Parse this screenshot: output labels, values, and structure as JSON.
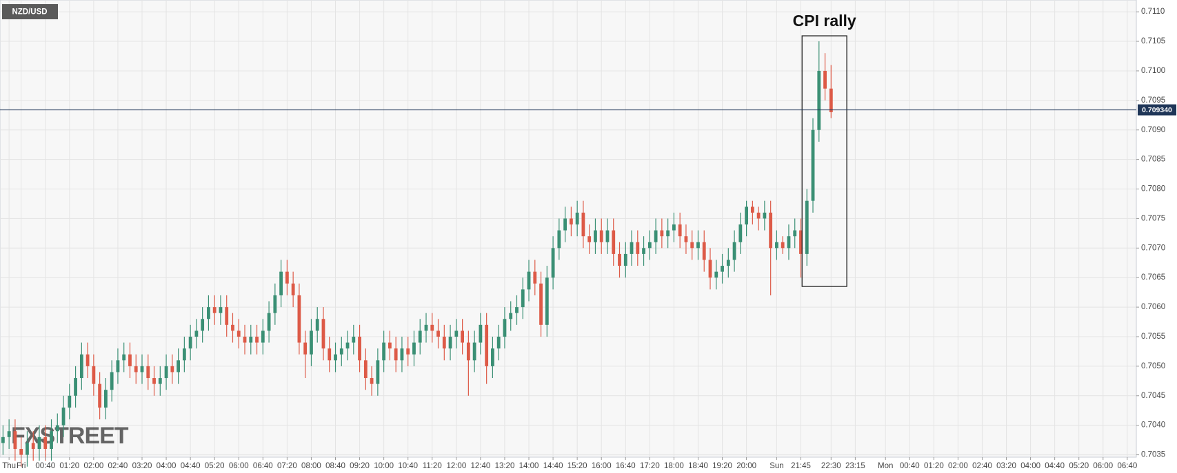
{
  "chart_data": {
    "type": "candlestick",
    "annotation": "CPI rally",
    "watermark": "FXSTREET",
    "grid": true,
    "up_color": "#3a8f74",
    "down_color": "#dd5a47",
    "ylim": [
      0.70346,
      0.7112
    ],
    "yticks": [
      0.7035,
      {
        "value": 0.704,
        "label": "0.7040"
      },
      0.7045,
      {
        "value": 0.705,
        "label": "0.7050"
      },
      0.7055,
      {
        "value": 0.706,
        "label": "0.7060"
      },
      0.7065,
      {
        "value": 0.707,
        "label": "0.7070"
      },
      0.7075,
      {
        "value": 0.708,
        "label": "0.7080"
      },
      0.7085,
      {
        "value": 0.709,
        "label": "0.7090"
      },
      0.7095,
      {
        "value": 0.71,
        "label": "0.7100"
      },
      0.7105,
      {
        "value": 0.711,
        "label": "0.7110"
      }
    ],
    "last_price": {
      "value": 0.70934,
      "label": "0.709340",
      "color": "#1f3658"
    },
    "categories": [
      null,
      "Thu",
      null,
      "Fri",
      null,
      null,
      null,
      "00:40",
      null,
      null,
      null,
      "01:20",
      null,
      null,
      null,
      "02:00",
      null,
      null,
      null,
      "02:40",
      null,
      null,
      null,
      "03:20",
      null,
      null,
      null,
      "04:00",
      null,
      null,
      null,
      "04:40",
      null,
      null,
      null,
      "05:20",
      null,
      null,
      null,
      "06:00",
      null,
      null,
      null,
      "06:40",
      null,
      null,
      null,
      "07:20",
      null,
      null,
      null,
      "08:00",
      null,
      null,
      null,
      "08:40",
      null,
      null,
      null,
      "09:20",
      null,
      null,
      null,
      "10:00",
      null,
      null,
      null,
      "10:40",
      null,
      null,
      null,
      "11:20",
      null,
      null,
      null,
      "12:00",
      null,
      null,
      null,
      "12:40",
      null,
      null,
      null,
      "13:20",
      null,
      null,
      null,
      "14:00",
      null,
      null,
      null,
      "14:40",
      null,
      null,
      null,
      "15:20",
      null,
      null,
      null,
      "16:00",
      null,
      null,
      null,
      "16:40",
      null,
      null,
      null,
      "17:20",
      null,
      null,
      null,
      "18:00",
      null,
      null,
      null,
      "18:40",
      null,
      null,
      null,
      "19:20",
      null,
      null,
      null,
      "20:00",
      null,
      null,
      null,
      null,
      "Sun",
      null,
      null,
      null,
      "21:45",
      null,
      null,
      null,
      null,
      "22:30",
      null,
      null,
      null,
      "23:15",
      null,
      null,
      null,
      null,
      "Mon",
      null,
      null,
      null,
      "00:40",
      null,
      null,
      null,
      "01:20",
      null,
      null,
      null,
      "02:00",
      null,
      null,
      null,
      "02:40",
      null,
      null,
      null,
      "03:20",
      null,
      null,
      null,
      "04:00",
      null,
      null,
      null,
      "04:40",
      null,
      null,
      null,
      "05:20",
      null,
      null,
      null,
      "06:00",
      null,
      null,
      null,
      "06:40",
      null
    ],
    "series": [
      {
        "name": "NZD/USD",
        "open": [
          0.7037,
          0.7038,
          0.7039,
          0.7036,
          0.7035,
          0.7037,
          0.7036,
          0.7038,
          0.7036,
          0.7039,
          0.704,
          0.7043,
          0.7045,
          0.7048,
          0.7052,
          0.705,
          0.7047,
          0.7043,
          0.7046,
          0.7049,
          0.7051,
          0.7052,
          0.705,
          0.7049,
          0.705,
          0.7048,
          0.7047,
          0.7048,
          0.705,
          0.7049,
          0.7051,
          0.7053,
          0.7055,
          0.7056,
          0.7058,
          0.706,
          0.7059,
          0.706,
          0.7057,
          0.7056,
          0.7055,
          0.7054,
          0.7055,
          0.7054,
          0.7056,
          0.7059,
          0.7062,
          0.7066,
          0.7064,
          0.7062,
          0.7054,
          0.7052,
          0.7056,
          0.7058,
          0.7053,
          0.7051,
          0.7052,
          0.7053,
          0.7054,
          0.7055,
          0.7051,
          0.7048,
          0.7047,
          0.7051,
          0.7054,
          0.7053,
          0.7051,
          0.7053,
          0.7052,
          0.7054,
          0.7056,
          0.7057,
          0.7056,
          0.7055,
          0.7053,
          0.7055,
          0.7056,
          0.7054,
          0.7051,
          0.7054,
          0.7057,
          0.705,
          0.7053,
          0.7055,
          0.7058,
          0.7059,
          0.706,
          0.7063,
          0.7066,
          0.7064,
          0.7057,
          0.7065,
          0.707,
          0.7073,
          0.7075,
          0.7074,
          0.7076,
          0.7072,
          0.7071,
          0.7073,
          0.7071,
          0.7073,
          0.7069,
          0.7067,
          0.7069,
          0.7071,
          0.7069,
          0.707,
          0.7071,
          0.7073,
          0.7072,
          0.7073,
          0.7074,
          0.7072,
          0.7071,
          0.707,
          0.7071,
          0.7068,
          0.7065,
          0.7066,
          0.7067,
          0.7068,
          0.7071,
          0.7074,
          0.7077,
          0.7076,
          0.7075,
          0.7076,
          0.707,
          0.7071,
          0.707,
          0.7072,
          0.7073,
          0.7069,
          0.7078,
          0.709,
          0.71,
          0.7097,
          null,
          null,
          null,
          null,
          null,
          null,
          null,
          null,
          null,
          null,
          null,
          null,
          null,
          null,
          null,
          null,
          null,
          null,
          null,
          null,
          null,
          null,
          null,
          null,
          null,
          null,
          null,
          null,
          null,
          null,
          null,
          null,
          null,
          null,
          null,
          null,
          null,
          null,
          null,
          null,
          null,
          null,
          null,
          null,
          null,
          null,
          null,
          null,
          null,
          null
        ],
        "high": [
          0.704,
          0.7041,
          0.7041,
          0.7038,
          0.7039,
          0.7039,
          0.704,
          0.704,
          0.7041,
          0.7042,
          0.7045,
          0.7047,
          0.705,
          0.7054,
          0.7054,
          0.7052,
          0.7049,
          0.7048,
          0.7051,
          0.7053,
          0.7054,
          0.7054,
          0.7052,
          0.7052,
          0.7052,
          0.705,
          0.705,
          0.7052,
          0.7052,
          0.7053,
          0.7055,
          0.7057,
          0.7058,
          0.706,
          0.7062,
          0.7062,
          0.7062,
          0.7062,
          0.7059,
          0.7058,
          0.7057,
          0.7057,
          0.7057,
          0.7058,
          0.7061,
          0.7064,
          0.7068,
          0.7068,
          0.7066,
          0.7064,
          0.7056,
          0.7058,
          0.706,
          0.706,
          0.7055,
          0.7054,
          0.7055,
          0.7056,
          0.7057,
          0.7057,
          0.7053,
          0.705,
          0.7053,
          0.7056,
          0.7056,
          0.7055,
          0.7055,
          0.7055,
          0.7056,
          0.7058,
          0.7059,
          0.7059,
          0.7058,
          0.7057,
          0.7057,
          0.7058,
          0.7058,
          0.7056,
          0.7056,
          0.7059,
          0.7059,
          0.7055,
          0.7057,
          0.706,
          0.7061,
          0.7062,
          0.7065,
          0.7068,
          0.7068,
          0.7066,
          0.7067,
          0.7072,
          0.7075,
          0.7077,
          0.7077,
          0.7078,
          0.7078,
          0.7074,
          0.7075,
          0.7075,
          0.7075,
          0.7075,
          0.7071,
          0.7071,
          0.7073,
          0.7073,
          0.7072,
          0.7073,
          0.7075,
          0.7075,
          0.7075,
          0.7076,
          0.7076,
          0.7074,
          0.7073,
          0.7073,
          0.7073,
          0.707,
          0.7068,
          0.7069,
          0.707,
          0.7073,
          0.7076,
          0.7078,
          0.7078,
          0.7077,
          0.7078,
          0.7078,
          0.7073,
          0.7072,
          0.7074,
          0.7075,
          0.7075,
          0.708,
          0.7092,
          0.7105,
          0.7103,
          0.7101,
          null,
          null,
          null,
          null,
          null,
          null,
          null,
          null,
          null,
          null,
          null,
          null,
          null,
          null,
          null,
          null,
          null,
          null,
          null,
          null,
          null,
          null,
          null,
          null,
          null,
          null,
          null,
          null,
          null,
          null,
          null,
          null,
          null,
          null,
          null,
          null,
          null,
          null,
          null,
          null,
          null,
          null,
          null,
          null,
          null,
          null,
          null,
          null,
          null,
          null
        ],
        "low": [
          0.7035,
          0.7036,
          0.7034,
          0.7033,
          0.7033,
          0.7034,
          0.7034,
          0.7034,
          0.7034,
          0.7037,
          0.7038,
          0.7041,
          0.7043,
          0.7046,
          0.7048,
          0.7045,
          0.7041,
          0.7041,
          0.7044,
          0.7047,
          0.7049,
          0.7048,
          0.7047,
          0.7047,
          0.7046,
          0.7045,
          0.7045,
          0.7046,
          0.7047,
          0.7047,
          0.7049,
          0.7051,
          0.7053,
          0.7054,
          0.7056,
          0.7057,
          0.7057,
          0.7055,
          0.7054,
          0.7053,
          0.7052,
          0.7052,
          0.7052,
          0.7052,
          0.7054,
          0.7057,
          0.706,
          0.7062,
          0.706,
          0.7052,
          0.7048,
          0.705,
          0.7054,
          0.7051,
          0.7049,
          0.7049,
          0.705,
          0.7051,
          0.7052,
          0.7049,
          0.7046,
          0.7045,
          0.7045,
          0.7049,
          0.7051,
          0.7049,
          0.7049,
          0.705,
          0.705,
          0.7052,
          0.7054,
          0.7054,
          0.7053,
          0.7051,
          0.7051,
          0.7053,
          0.7052,
          0.7045,
          0.7049,
          0.7052,
          0.7047,
          0.7048,
          0.7051,
          0.7053,
          0.7056,
          0.7057,
          0.7058,
          0.7061,
          0.7062,
          0.7055,
          0.7055,
          0.7063,
          0.7068,
          0.7071,
          0.7072,
          0.7072,
          0.707,
          0.7069,
          0.7069,
          0.7069,
          0.7069,
          0.7067,
          0.7065,
          0.7065,
          0.7067,
          0.7067,
          0.7067,
          0.7068,
          0.7069,
          0.707,
          0.707,
          0.7071,
          0.707,
          0.7069,
          0.7068,
          0.7068,
          0.7066,
          0.7063,
          0.7063,
          0.7064,
          0.7065,
          0.7066,
          0.7069,
          0.7072,
          0.7074,
          0.7073,
          0.7073,
          0.7062,
          0.7068,
          0.7069,
          0.7068,
          0.707,
          0.7065,
          0.7067,
          0.7076,
          0.7088,
          0.7095,
          0.7092,
          null,
          null,
          null,
          null,
          null,
          null,
          null,
          null,
          null,
          null,
          null,
          null,
          null,
          null,
          null,
          null,
          null,
          null,
          null,
          null,
          null,
          null,
          null,
          null,
          null,
          null,
          null,
          null,
          null,
          null,
          null,
          null,
          null,
          null,
          null,
          null,
          null,
          null,
          null,
          null,
          null,
          null,
          null,
          null,
          null,
          null,
          null,
          null,
          null,
          null
        ],
        "close": [
          0.7038,
          0.7039,
          0.7036,
          0.7035,
          0.7037,
          0.7036,
          0.7038,
          0.7036,
          0.7039,
          0.704,
          0.7043,
          0.7045,
          0.7048,
          0.7052,
          0.705,
          0.7047,
          0.7043,
          0.7046,
          0.7049,
          0.7051,
          0.7052,
          0.705,
          0.7049,
          0.705,
          0.7048,
          0.7047,
          0.7048,
          0.705,
          0.7049,
          0.7051,
          0.7053,
          0.7055,
          0.7056,
          0.7058,
          0.706,
          0.7059,
          0.706,
          0.7057,
          0.7056,
          0.7055,
          0.7054,
          0.7055,
          0.7054,
          0.7056,
          0.7059,
          0.7062,
          0.7066,
          0.7064,
          0.7062,
          0.7054,
          0.7052,
          0.7056,
          0.7058,
          0.7053,
          0.7051,
          0.7052,
          0.7053,
          0.7054,
          0.7055,
          0.7051,
          0.7048,
          0.7047,
          0.7051,
          0.7054,
          0.7053,
          0.7051,
          0.7053,
          0.7052,
          0.7054,
          0.7056,
          0.7057,
          0.7056,
          0.7055,
          0.7053,
          0.7055,
          0.7056,
          0.7054,
          0.7051,
          0.7054,
          0.7057,
          0.705,
          0.7053,
          0.7055,
          0.7058,
          0.7059,
          0.706,
          0.7063,
          0.7066,
          0.7064,
          0.7057,
          0.7065,
          0.707,
          0.7073,
          0.7075,
          0.7074,
          0.7076,
          0.7072,
          0.7071,
          0.7073,
          0.7071,
          0.7073,
          0.7069,
          0.7067,
          0.7069,
          0.7071,
          0.7069,
          0.707,
          0.7071,
          0.7073,
          0.7072,
          0.7073,
          0.7074,
          0.7072,
          0.7071,
          0.707,
          0.7071,
          0.7068,
          0.7065,
          0.7066,
          0.7067,
          0.7068,
          0.7071,
          0.7074,
          0.7077,
          0.7076,
          0.7075,
          0.7076,
          0.707,
          0.7071,
          0.707,
          0.7072,
          0.7073,
          0.7069,
          0.7078,
          0.709,
          0.71,
          0.7097,
          0.7093,
          null,
          null,
          null,
          null,
          null,
          null,
          null,
          null,
          null,
          null,
          null,
          null,
          null,
          null,
          null,
          null,
          null,
          null,
          null,
          null,
          null,
          null,
          null,
          null,
          null,
          null,
          null,
          null,
          null,
          null,
          null,
          null,
          null,
          null,
          null,
          null,
          null,
          null,
          null,
          null,
          null,
          null,
          null,
          null,
          null,
          null,
          null,
          null,
          null,
          null
        ]
      }
    ]
  }
}
